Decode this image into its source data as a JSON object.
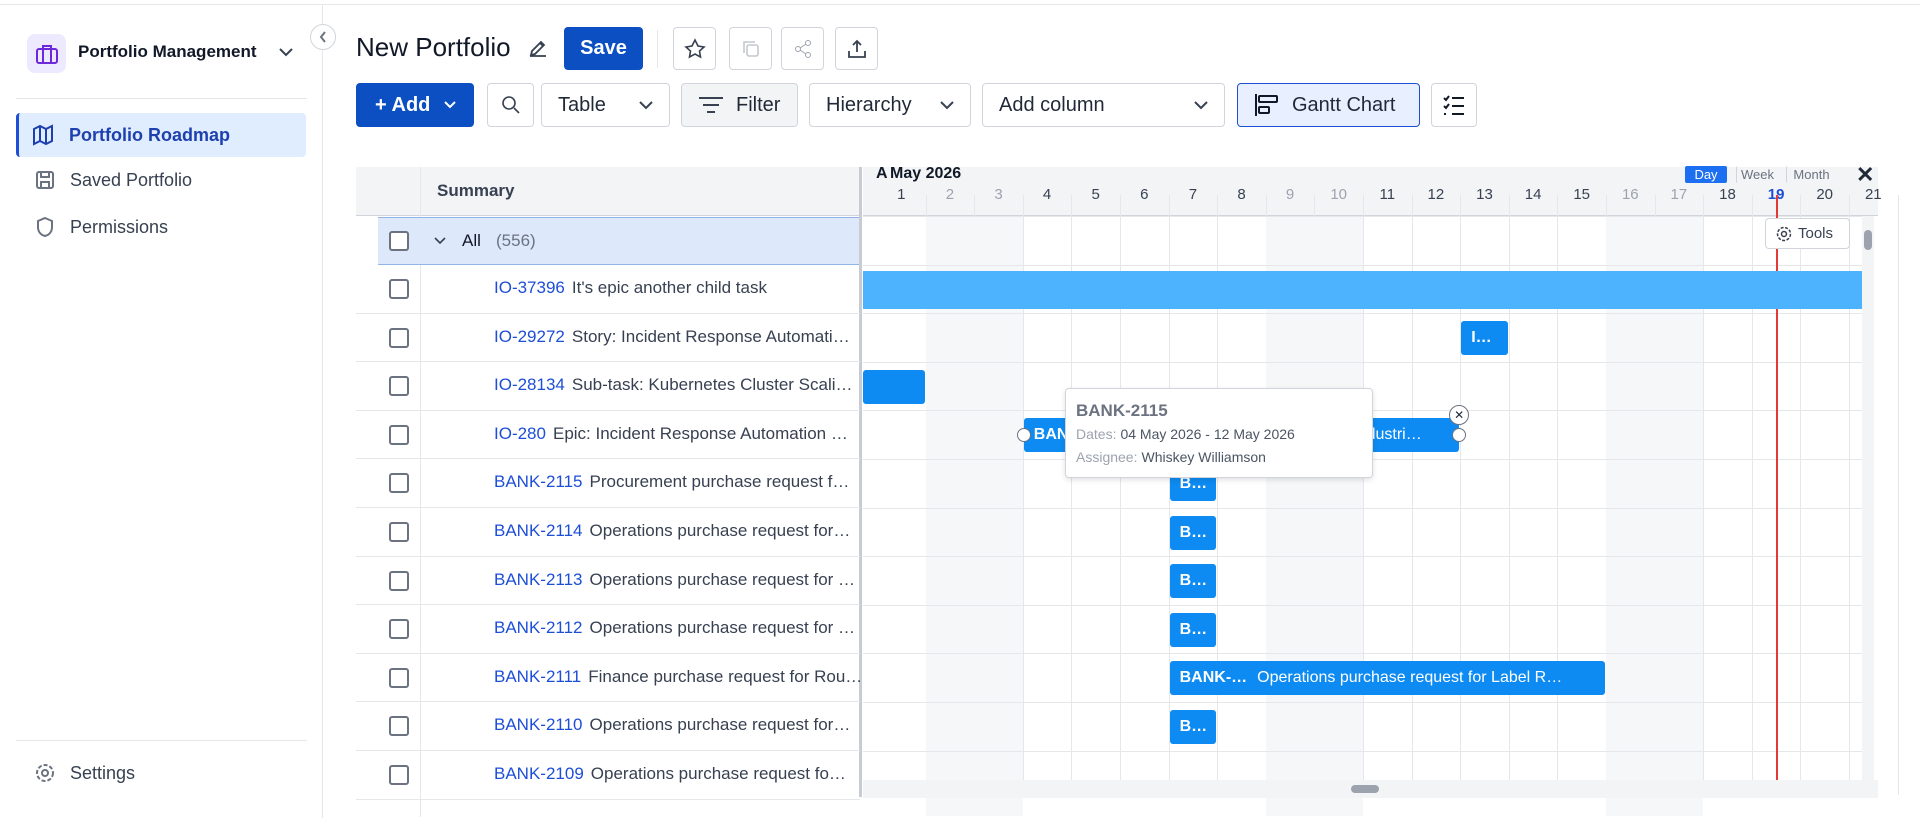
{
  "sidebar": {
    "title": "Portfolio Management",
    "nav": [
      "Portfolio Roadmap",
      "Saved Portfolio",
      "Permissions"
    ],
    "footer": "Settings"
  },
  "header": {
    "title": "New Portfolio",
    "save_button": "Save"
  },
  "toolbar": {
    "add_button": "+ Add",
    "view_select": "Table",
    "filter_button": "Filter",
    "hierarchy_select": "Hierarchy",
    "add_column_select": "Add column",
    "gantt_button": "Gantt Chart"
  },
  "table": {
    "column": "Summary",
    "group": {
      "label": "All",
      "count": "(556)"
    },
    "rows": [
      [
        "IO-37396",
        "It's epic another child task"
      ],
      [
        "IO-29272",
        "Story: Incident Response Automati…"
      ],
      [
        "IO-28134",
        "Sub-task: Kubernetes Cluster Scali…"
      ],
      [
        "IO-280",
        "Epic: Incident Response Automation …"
      ],
      [
        "BANK-2115",
        "Procurement purchase request f…"
      ],
      [
        "BANK-2114",
        "Operations purchase request for…"
      ],
      [
        "BANK-2113",
        "Operations purchase request for …"
      ],
      [
        "BANK-2112",
        "Operations purchase request for …"
      ],
      [
        "BANK-2111",
        "Finance purchase request for Rou…"
      ],
      [
        "BANK-2110",
        "Operations purchase request for…"
      ],
      [
        "BANK-2109",
        "Operations purchase request fo…"
      ]
    ]
  },
  "gantt": {
    "prev_month": "A",
    "month": "May 2026",
    "days": [
      1,
      2,
      3,
      4,
      5,
      6,
      7,
      8,
      9,
      10,
      11,
      12,
      13,
      14,
      15,
      16,
      17,
      18,
      19,
      20,
      21
    ],
    "scales": [
      "Day",
      "Week",
      "Month"
    ],
    "tools": "Tools",
    "bars": [
      [
        "I…"
      ],
      [
        "BANK…",
        "Procurement purchase request for Industri…"
      ],
      [
        "B…"
      ],
      [
        "B…"
      ],
      [
        "B…"
      ],
      [
        "B…"
      ],
      [
        "BANK-…",
        "Operations purchase request for Label R…"
      ],
      [
        "B…"
      ]
    ],
    "tooltip": {
      "key": "BANK-2115",
      "dates_label": "Dates:",
      "dates": "04 May 2026 - 12 May 2026",
      "assignee_label": "Assignee:",
      "assignee": "Whiskey Williamson"
    }
  }
}
